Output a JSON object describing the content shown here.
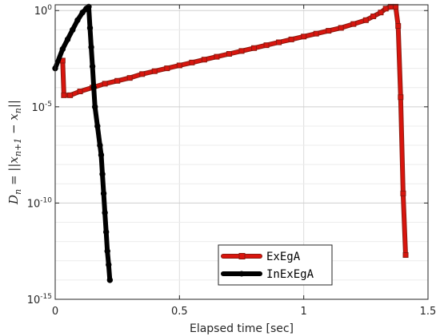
{
  "chart_data": {
    "type": "line",
    "xlabel": "Elapsed time [sec]",
    "ylabel": {
      "base": "D",
      "base_sub": "n",
      "eq": " = ",
      "norm_left": "||",
      "x1": "x",
      "x1_sub": "n+1",
      "minus": " − ",
      "x2": "x",
      "x2_sub": "n",
      "norm_right": "||"
    },
    "xlim": [
      0,
      1.5
    ],
    "ylim_log10": [
      -15,
      0.3
    ],
    "yscale": "log",
    "grid": true,
    "legend_placement": "bottom-right",
    "x_ticks": [
      {
        "value": 0,
        "label": "0"
      },
      {
        "value": 0.5,
        "label": "0.5"
      },
      {
        "value": 1,
        "label": "1"
      },
      {
        "value": 1.5,
        "label": "1.5"
      }
    ],
    "y_ticks": [
      {
        "exp": 0,
        "base": "10",
        "sup": "0"
      },
      {
        "exp": -5,
        "base": "10",
        "sup": "-5"
      },
      {
        "exp": -10,
        "base": "10",
        "sup": "-10"
      },
      {
        "exp": -15,
        "base": "10",
        "sup": "-15"
      }
    ],
    "series": [
      {
        "name": "ExEgA",
        "color": "#d9150e",
        "edge_color": "#8b1a10",
        "marker": "square",
        "x": [
          0.03,
          0.035,
          0.06,
          0.1,
          0.15,
          0.2,
          0.25,
          0.3,
          0.35,
          0.4,
          0.45,
          0.5,
          0.55,
          0.6,
          0.65,
          0.7,
          0.75,
          0.8,
          0.85,
          0.9,
          0.95,
          1.0,
          1.05,
          1.1,
          1.15,
          1.2,
          1.25,
          1.28,
          1.31,
          1.33,
          1.35,
          1.37,
          1.38,
          1.39,
          1.4,
          1.41
        ],
        "y_log10": [
          -2.6,
          -4.4,
          -4.4,
          -4.2,
          -4.0,
          -3.8,
          -3.65,
          -3.5,
          -3.3,
          -3.15,
          -3.0,
          -2.85,
          -2.7,
          -2.55,
          -2.4,
          -2.25,
          -2.1,
          -1.95,
          -1.8,
          -1.65,
          -1.5,
          -1.35,
          -1.2,
          -1.05,
          -0.9,
          -0.7,
          -0.5,
          -0.3,
          -0.1,
          0.1,
          0.2,
          0.2,
          -0.8,
          -4.5,
          -9.5,
          -12.7
        ]
      },
      {
        "name": "InExEgA",
        "color": "#000000",
        "edge_color": "#000000",
        "marker": "circle",
        "x": [
          0.0,
          0.03,
          0.05,
          0.07,
          0.09,
          0.11,
          0.125,
          0.135,
          0.14,
          0.145,
          0.15,
          0.155,
          0.16,
          0.17,
          0.18,
          0.185,
          0.19,
          0.195,
          0.2,
          0.205,
          0.21,
          0.215,
          0.22
        ],
        "y_log10": [
          -3.0,
          -2.0,
          -1.5,
          -1.0,
          -0.5,
          -0.1,
          0.1,
          0.2,
          -0.9,
          -1.9,
          -2.9,
          -4.0,
          -5.0,
          -6.0,
          -7.0,
          -7.5,
          -8.5,
          -9.5,
          -10.5,
          -11.5,
          -12.5,
          -13.2,
          -14.0
        ]
      }
    ]
  }
}
